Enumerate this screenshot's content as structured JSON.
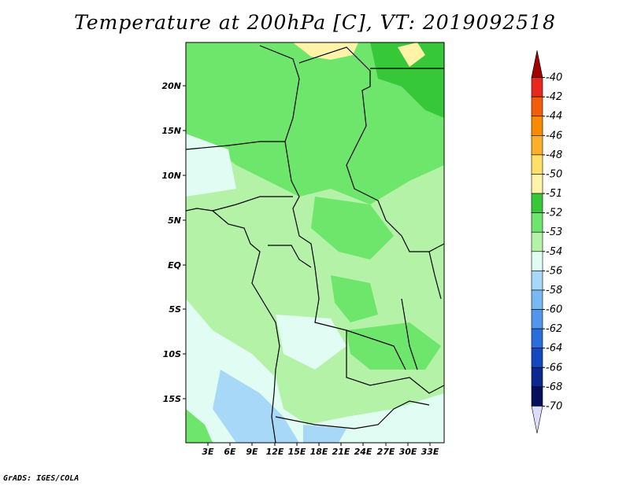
{
  "title": "Temperature at 200hPa [C], VT: 2019092518",
  "credit": "GrADS: IGES/COLA",
  "map": {
    "lat_labels": [
      "20N",
      "15N",
      "10N",
      "5N",
      "EQ",
      "5S",
      "10S",
      "15S"
    ],
    "lon_labels": [
      "3E",
      "6E",
      "9E",
      "12E",
      "15E",
      "18E",
      "21E",
      "24E",
      "27E",
      "30E",
      "33E"
    ],
    "extent": {
      "lon": [
        0,
        35
      ],
      "lat": [
        -20,
        25
      ]
    }
  },
  "colorbar": {
    "labels": [
      "-40",
      "-42",
      "-44",
      "-46",
      "-48",
      "-50",
      "-51",
      "-52",
      "-53",
      "-54",
      "-56",
      "-58",
      "-60",
      "-62",
      "-64",
      "-66",
      "-68",
      "-70"
    ],
    "colors": [
      "#a00000",
      "#e8281c",
      "#f25d0c",
      "#f98b00",
      "#fcaf2c",
      "#fde068",
      "#fff3a8",
      "#37c83a",
      "#6ee66b",
      "#b4f2a8",
      "#e1fcf2",
      "#a8d8f8",
      "#78b8f4",
      "#5096ec",
      "#2a6edc",
      "#1448be",
      "#0a2890",
      "#04105c",
      "#dcdcf8"
    ]
  }
}
